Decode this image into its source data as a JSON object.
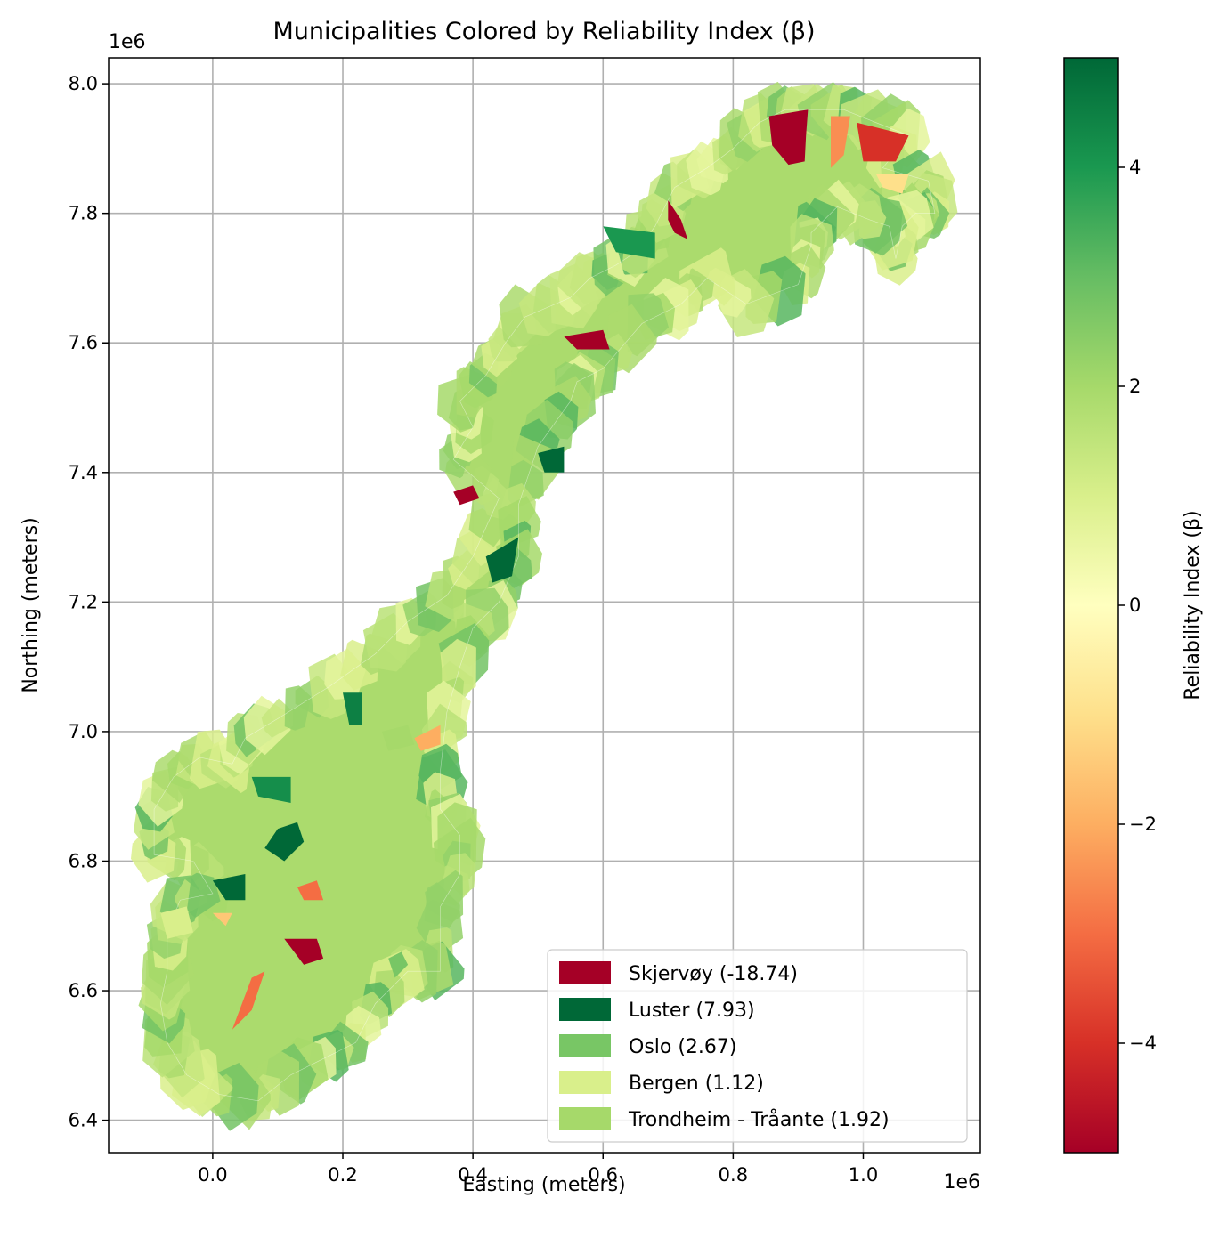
{
  "title": "Municipalities Colored by Reliability Index (β)",
  "x_axis": {
    "label": "Easting (meters)",
    "offset_label": "1e6",
    "range": [
      -0.16,
      1.18
    ],
    "ticks": [
      {
        "value": 0.0,
        "label": "0.0"
      },
      {
        "value": 0.2,
        "label": "0.2"
      },
      {
        "value": 0.4,
        "label": "0.4"
      },
      {
        "value": 0.6,
        "label": "0.6"
      },
      {
        "value": 0.8,
        "label": "0.8"
      },
      {
        "value": 1.0,
        "label": "1.0"
      }
    ]
  },
  "y_axis": {
    "label": "Northing (meters)",
    "offset_label": "1e6",
    "range": [
      6.35,
      8.04
    ],
    "ticks": [
      {
        "value": 6.4,
        "label": "6.4"
      },
      {
        "value": 6.6,
        "label": "6.6"
      },
      {
        "value": 6.8,
        "label": "6.8"
      },
      {
        "value": 7.0,
        "label": "7.0"
      },
      {
        "value": 7.2,
        "label": "7.2"
      },
      {
        "value": 7.4,
        "label": "7.4"
      },
      {
        "value": 7.6,
        "label": "7.6"
      },
      {
        "value": 7.8,
        "label": "7.8"
      },
      {
        "value": 8.0,
        "label": "8.0"
      }
    ]
  },
  "grid": true,
  "colorbar": {
    "label": "Reliability Index (β)",
    "colormap": "RdYlGn",
    "range": [
      -5,
      5
    ],
    "stops": [
      "#a50026",
      "#d73027",
      "#f46d43",
      "#fdae61",
      "#fee08b",
      "#ffffbf",
      "#d9ef8b",
      "#a6d96a",
      "#66bd63",
      "#1a9850",
      "#006837"
    ],
    "ticks": [
      {
        "value": -4,
        "label": "−4"
      },
      {
        "value": -2,
        "label": "−2"
      },
      {
        "value": 0,
        "label": "0"
      },
      {
        "value": 2,
        "label": "2"
      },
      {
        "value": 4,
        "label": "4"
      }
    ]
  },
  "legend": {
    "placement": "lower-right",
    "items": [
      {
        "label": "Skjervøy (-18.74)",
        "color": "#a50026"
      },
      {
        "label": "Luster (7.93)",
        "color": "#006837"
      },
      {
        "label": "Oslo (2.67)",
        "color": "#78c665"
      },
      {
        "label": "Bergen (1.12)",
        "color": "#d9ef8b"
      },
      {
        "label": "Trondheim - Tråante (1.92)",
        "color": "#a6d96a"
      }
    ]
  },
  "map": {
    "region": "Norway municipalities",
    "outline": [
      [
        0.0,
        6.75
      ],
      [
        -0.03,
        6.8
      ],
      [
        -0.09,
        6.81
      ],
      [
        -0.09,
        6.88
      ],
      [
        -0.06,
        6.93
      ],
      [
        -0.02,
        6.96
      ],
      [
        0.03,
        6.95
      ],
      [
        0.05,
        6.99
      ],
      [
        0.1,
        7.02
      ],
      [
        0.18,
        7.07
      ],
      [
        0.25,
        7.12
      ],
      [
        0.3,
        7.17
      ],
      [
        0.36,
        7.21
      ],
      [
        0.4,
        7.27
      ],
      [
        0.44,
        7.36
      ],
      [
        0.37,
        7.42
      ],
      [
        0.4,
        7.47
      ],
      [
        0.38,
        7.51
      ],
      [
        0.42,
        7.55
      ],
      [
        0.45,
        7.6
      ],
      [
        0.48,
        7.64
      ],
      [
        0.55,
        7.67
      ],
      [
        0.58,
        7.7
      ],
      [
        0.62,
        7.72
      ],
      [
        0.65,
        7.74
      ],
      [
        0.68,
        7.78
      ],
      [
        0.71,
        7.84
      ],
      [
        0.76,
        7.87
      ],
      [
        0.8,
        7.9
      ],
      [
        0.84,
        7.94
      ],
      [
        0.88,
        7.96
      ],
      [
        0.92,
        7.96
      ],
      [
        0.97,
        7.96
      ],
      [
        1.02,
        7.94
      ],
      [
        1.07,
        7.92
      ],
      [
        1.03,
        7.87
      ],
      [
        1.1,
        7.85
      ],
      [
        1.11,
        7.8
      ],
      [
        1.08,
        7.8
      ],
      [
        1.06,
        7.78
      ],
      [
        1.05,
        7.73
      ],
      [
        1.04,
        7.78
      ],
      [
        1.01,
        7.79
      ],
      [
        0.96,
        7.81
      ],
      [
        0.92,
        7.77
      ],
      [
        0.92,
        7.75
      ],
      [
        0.9,
        7.69
      ],
      [
        0.82,
        7.66
      ],
      [
        0.76,
        7.7
      ],
      [
        0.72,
        7.66
      ],
      [
        0.66,
        7.63
      ],
      [
        0.6,
        7.56
      ],
      [
        0.56,
        7.54
      ],
      [
        0.55,
        7.51
      ],
      [
        0.5,
        7.44
      ],
      [
        0.47,
        7.35
      ],
      [
        0.47,
        7.27
      ],
      [
        0.44,
        7.2
      ],
      [
        0.4,
        7.16
      ],
      [
        0.38,
        7.1
      ],
      [
        0.36,
        7.03
      ],
      [
        0.35,
        6.94
      ],
      [
        0.35,
        6.88
      ],
      [
        0.38,
        6.84
      ],
      [
        0.38,
        6.78
      ],
      [
        0.35,
        6.73
      ],
      [
        0.35,
        6.63
      ],
      [
        0.3,
        6.63
      ],
      [
        0.25,
        6.58
      ],
      [
        0.22,
        6.52
      ],
      [
        0.18,
        6.5
      ],
      [
        0.12,
        6.47
      ],
      [
        0.07,
        6.43
      ],
      [
        0.01,
        6.44
      ],
      [
        -0.04,
        6.47
      ],
      [
        -0.07,
        6.52
      ],
      [
        -0.08,
        6.58
      ],
      [
        -0.07,
        6.63
      ],
      [
        -0.07,
        6.69
      ],
      [
        -0.05,
        6.74
      ],
      [
        0.0,
        6.75
      ]
    ],
    "highlighted_municipalities": [
      {
        "name": "Skjervøy",
        "beta": -18.74,
        "points": [
          [
            0.855,
            7.95
          ],
          [
            0.915,
            7.96
          ],
          [
            0.912,
            7.92
          ],
          [
            0.91,
            7.88
          ],
          [
            0.885,
            7.875
          ],
          [
            0.86,
            7.905
          ]
        ]
      },
      {
        "name": "Luster",
        "beta": 7.93,
        "points": [
          [
            0.1,
            6.85
          ],
          [
            0.13,
            6.86
          ],
          [
            0.14,
            6.83
          ],
          [
            0.11,
            6.8
          ],
          [
            0.08,
            6.82
          ]
        ]
      },
      {
        "name": "Oslo",
        "beta": 2.67,
        "points": [
          [
            0.27,
            6.65
          ],
          [
            0.29,
            6.66
          ],
          [
            0.3,
            6.64
          ],
          [
            0.28,
            6.62
          ]
        ]
      },
      {
        "name": "Bergen",
        "beta": 1.12,
        "points": [
          [
            -0.08,
            6.72
          ],
          [
            -0.04,
            6.73
          ],
          [
            -0.03,
            6.69
          ],
          [
            -0.07,
            6.68
          ]
        ]
      },
      {
        "name": "Trondheim - Tråante",
        "beta": 1.92,
        "points": [
          [
            0.26,
            7.0
          ],
          [
            0.3,
            7.01
          ],
          [
            0.31,
            6.98
          ],
          [
            0.27,
            6.97
          ]
        ]
      }
    ],
    "other_low_beta_regions": [
      {
        "beta": -5,
        "points": [
          [
            0.7,
            7.82
          ],
          [
            0.72,
            7.79
          ],
          [
            0.73,
            7.76
          ],
          [
            0.71,
            7.77
          ],
          [
            0.7,
            7.79
          ]
        ]
      },
      {
        "beta": -5,
        "points": [
          [
            0.54,
            7.61
          ],
          [
            0.6,
            7.62
          ],
          [
            0.61,
            7.59
          ],
          [
            0.56,
            7.59
          ]
        ]
      },
      {
        "beta": -5,
        "points": [
          [
            0.37,
            7.37
          ],
          [
            0.4,
            7.38
          ],
          [
            0.41,
            7.36
          ],
          [
            0.38,
            7.35
          ]
        ]
      },
      {
        "beta": -5,
        "points": [
          [
            0.11,
            6.68
          ],
          [
            0.16,
            6.68
          ],
          [
            0.17,
            6.65
          ],
          [
            0.14,
            6.64
          ]
        ]
      },
      {
        "beta": -4,
        "points": [
          [
            0.99,
            7.94
          ],
          [
            1.07,
            7.92
          ],
          [
            1.05,
            7.88
          ],
          [
            1.0,
            7.88
          ]
        ]
      },
      {
        "beta": -3,
        "points": [
          [
            0.06,
            6.62
          ],
          [
            0.08,
            6.63
          ],
          [
            0.06,
            6.57
          ],
          [
            0.03,
            6.54
          ]
        ]
      },
      {
        "beta": -3,
        "points": [
          [
            0.13,
            6.76
          ],
          [
            0.16,
            6.77
          ],
          [
            0.17,
            6.74
          ],
          [
            0.14,
            6.74
          ]
        ]
      },
      {
        "beta": -2.5,
        "points": [
          [
            0.95,
            7.95
          ],
          [
            0.98,
            7.95
          ],
          [
            0.97,
            7.89
          ],
          [
            0.95,
            7.87
          ]
        ]
      },
      {
        "beta": -2,
        "points": [
          [
            0.31,
            6.99
          ],
          [
            0.35,
            7.01
          ],
          [
            0.35,
            6.98
          ],
          [
            0.32,
            6.97
          ]
        ]
      },
      {
        "beta": -1.5,
        "points": [
          [
            0.0,
            6.72
          ],
          [
            0.03,
            6.72
          ],
          [
            0.02,
            6.7
          ]
        ]
      },
      {
        "beta": -1.0,
        "points": [
          [
            1.02,
            7.86
          ],
          [
            1.07,
            7.86
          ],
          [
            1.06,
            7.83
          ],
          [
            1.03,
            7.84
          ]
        ]
      }
    ],
    "other_high_beta_regions": [
      {
        "beta": 5,
        "points": [
          [
            0.42,
            7.27
          ],
          [
            0.47,
            7.3
          ],
          [
            0.46,
            7.24
          ],
          [
            0.43,
            7.23
          ]
        ]
      },
      {
        "beta": 5,
        "points": [
          [
            0.5,
            7.43
          ],
          [
            0.54,
            7.44
          ],
          [
            0.54,
            7.4
          ],
          [
            0.51,
            7.4
          ]
        ]
      },
      {
        "beta": 5,
        "points": [
          [
            0.0,
            6.77
          ],
          [
            0.05,
            6.78
          ],
          [
            0.05,
            6.74
          ],
          [
            0.02,
            6.74
          ]
        ]
      },
      {
        "beta": 4.5,
        "points": [
          [
            0.2,
            7.06
          ],
          [
            0.23,
            7.06
          ],
          [
            0.23,
            7.01
          ],
          [
            0.21,
            7.01
          ]
        ]
      },
      {
        "beta": 4.2,
        "points": [
          [
            0.06,
            6.93
          ],
          [
            0.12,
            6.93
          ],
          [
            0.12,
            6.89
          ],
          [
            0.07,
            6.9
          ]
        ]
      },
      {
        "beta": 4,
        "points": [
          [
            0.6,
            7.78
          ],
          [
            0.68,
            7.77
          ],
          [
            0.68,
            7.73
          ],
          [
            0.62,
            7.74
          ]
        ]
      }
    ]
  }
}
